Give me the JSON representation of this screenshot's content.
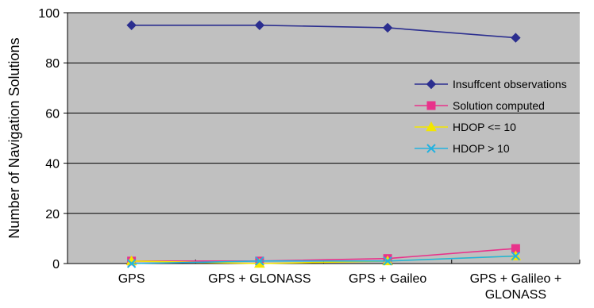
{
  "chart_data": {
    "type": "line",
    "title": "",
    "xlabel": "",
    "ylabel": "Number of Navigation Solutions",
    "ylim": [
      0,
      100
    ],
    "yticks": [
      0,
      20,
      40,
      60,
      80,
      100
    ],
    "grid": true,
    "legend_position": "right",
    "plot_background": "#c0c0c0",
    "categories": [
      [
        "GPS"
      ],
      [
        "GPS + GLONASS"
      ],
      [
        "GPS + Gaileo"
      ],
      [
        "GPS + Galileo +",
        "GLONASS"
      ]
    ],
    "series": [
      {
        "name": "Insuffcent observations",
        "values": [
          95,
          95,
          94,
          90
        ],
        "color": "#2b2e8f",
        "marker": "diamond"
      },
      {
        "name": "Solution computed",
        "values": [
          1,
          1,
          2,
          6
        ],
        "color": "#e8338b",
        "marker": "square"
      },
      {
        "name": "HDOP <= 10",
        "values": [
          1,
          0,
          1,
          3
        ],
        "color": "#f2e600",
        "marker": "triangle"
      },
      {
        "name": "HDOP > 10",
        "values": [
          0,
          1,
          1,
          3
        ],
        "color": "#23b2e0",
        "marker": "x"
      }
    ]
  }
}
